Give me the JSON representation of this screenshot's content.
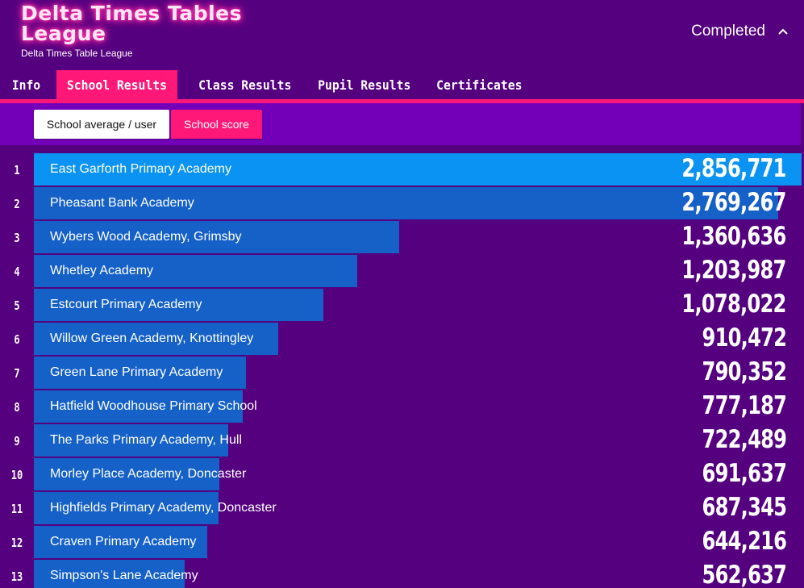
{
  "header": {
    "title": "Delta Times Tables League",
    "subtitle": "Delta Times Table League",
    "status_label": "Completed",
    "status_icon": "chevron-up-icon"
  },
  "tabs": [
    {
      "label": "Info",
      "active": false
    },
    {
      "label": "School Results",
      "active": true
    },
    {
      "label": "Class Results",
      "active": false
    },
    {
      "label": "Pupil Results",
      "active": false
    },
    {
      "label": "Certificates",
      "active": false
    }
  ],
  "view_toggle": {
    "average_label": "School average / user",
    "score_label": "School score",
    "selected": "School score"
  },
  "colors": {
    "background": "#54007f",
    "accent": "#ff1877",
    "sub_bar": "#7300b8",
    "bar": "#1561c7",
    "bar_top": "#0a93f2"
  },
  "results": [
    {
      "rank": "1",
      "school": "East Garforth Primary Academy",
      "score": "2,856,771",
      "value": 2856771
    },
    {
      "rank": "2",
      "school": "Pheasant Bank Academy",
      "score": "2,769,267",
      "value": 2769267
    },
    {
      "rank": "3",
      "school": "Wybers Wood Academy, Grimsby",
      "score": "1,360,636",
      "value": 1360636
    },
    {
      "rank": "4",
      "school": "Whetley Academy",
      "score": "1,203,987",
      "value": 1203987
    },
    {
      "rank": "5",
      "school": "Estcourt Primary Academy",
      "score": "1,078,022",
      "value": 1078022
    },
    {
      "rank": "6",
      "school": "Willow Green Academy, Knottingley",
      "score": "910,472",
      "value": 910472
    },
    {
      "rank": "7",
      "school": "Green Lane Primary Academy",
      "score": "790,352",
      "value": 790352
    },
    {
      "rank": "8",
      "school": "Hatfield Woodhouse Primary School",
      "score": "777,187",
      "value": 777187
    },
    {
      "rank": "9",
      "school": "The Parks Primary Academy, Hull",
      "score": "722,489",
      "value": 722489
    },
    {
      "rank": "10",
      "school": "Morley Place Academy, Doncaster",
      "score": "691,637",
      "value": 691637
    },
    {
      "rank": "11",
      "school": "Highfields Primary Academy, Doncaster",
      "score": "687,345",
      "value": 687345
    },
    {
      "rank": "12",
      "school": "Craven Primary Academy",
      "score": "644,216",
      "value": 644216
    },
    {
      "rank": "13",
      "school": "Simpson's Lane Academy",
      "score": "562,637",
      "value": 562637
    }
  ]
}
